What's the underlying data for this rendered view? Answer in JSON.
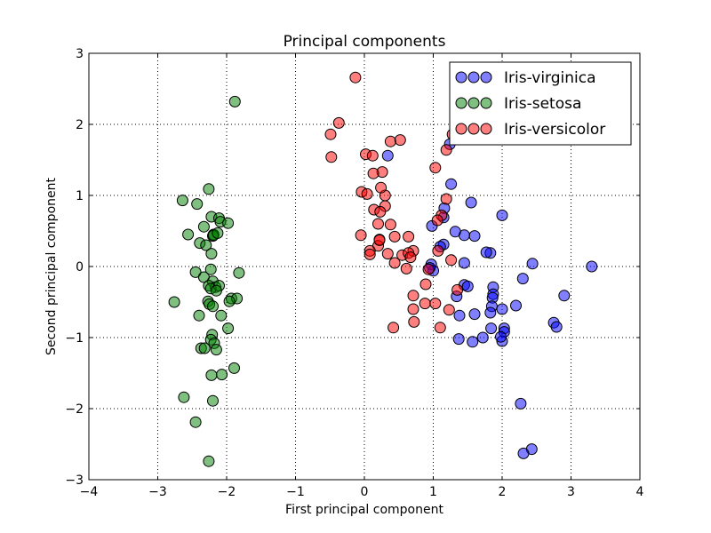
{
  "chart_data": {
    "type": "scatter",
    "title": "Principal components",
    "xlabel": "First principal component",
    "ylabel": "Second principal component",
    "xlim": [
      -4,
      4
    ],
    "ylim": [
      -3,
      3
    ],
    "x_ticks": [
      "−4",
      "−3",
      "−2",
      "−1",
      "0",
      "1",
      "2",
      "3",
      "4"
    ],
    "y_ticks": [
      "−3",
      "−2",
      "−1",
      "0",
      "1",
      "2",
      "3"
    ],
    "grid": true,
    "legend_position": "top-right",
    "series": [
      {
        "name": "Iris-virginica",
        "color": "#0000ff",
        "points": [
          [
            3.3,
            0.0
          ],
          [
            2.44,
            0.04
          ],
          [
            2.3,
            -0.17
          ],
          [
            2.9,
            -0.41
          ],
          [
            2.75,
            -0.79
          ],
          [
            2.79,
            -0.85
          ],
          [
            2.43,
            -2.57
          ],
          [
            2.31,
            -2.63
          ],
          [
            2.27,
            -1.93
          ],
          [
            2.2,
            -0.55
          ],
          [
            2.03,
            -0.87
          ],
          [
            2.03,
            -0.92
          ],
          [
            2.0,
            -1.05
          ],
          [
            1.98,
            -0.99
          ],
          [
            2.0,
            0.72
          ],
          [
            2.0,
            -0.6
          ],
          [
            1.87,
            -0.29
          ],
          [
            1.87,
            -0.39
          ],
          [
            1.86,
            -0.44
          ],
          [
            1.85,
            -0.56
          ],
          [
            1.83,
            -0.65
          ],
          [
            1.84,
            -0.87
          ],
          [
            1.83,
            0.19
          ],
          [
            1.77,
            0.2
          ],
          [
            1.72,
            -1.0
          ],
          [
            1.57,
            -1.06
          ],
          [
            1.6,
            -0.67
          ],
          [
            1.6,
            0.43
          ],
          [
            1.55,
            0.9
          ],
          [
            1.45,
            0.44
          ],
          [
            1.45,
            -0.26
          ],
          [
            1.5,
            -0.28
          ],
          [
            1.45,
            0.05
          ],
          [
            1.38,
            -0.69
          ],
          [
            1.37,
            -1.02
          ],
          [
            1.34,
            -0.42
          ],
          [
            1.32,
            0.49
          ],
          [
            1.26,
            1.16
          ],
          [
            1.24,
            1.72
          ],
          [
            1.16,
            0.82
          ],
          [
            1.15,
            0.69
          ],
          [
            1.15,
            0.31
          ],
          [
            1.1,
            0.28
          ],
          [
            0.98,
            0.57
          ],
          [
            0.97,
            0.03
          ],
          [
            1.0,
            -0.06
          ],
          [
            0.95,
            -0.02
          ],
          [
            0.34,
            1.56
          ]
        ]
      },
      {
        "name": "Iris-setosa",
        "color": "#008000",
        "points": [
          [
            -1.88,
            2.32
          ],
          [
            -2.26,
            1.09
          ],
          [
            -2.64,
            0.93
          ],
          [
            -2.43,
            0.88
          ],
          [
            -2.22,
            0.7
          ],
          [
            -2.11,
            0.68
          ],
          [
            -2.09,
            0.63
          ],
          [
            -1.98,
            0.61
          ],
          [
            -2.33,
            0.56
          ],
          [
            -2.19,
            0.45
          ],
          [
            -2.2,
            0.43
          ],
          [
            -2.56,
            0.45
          ],
          [
            -2.39,
            0.33
          ],
          [
            -2.3,
            0.3
          ],
          [
            -2.22,
            0.18
          ],
          [
            -2.23,
            -0.04
          ],
          [
            -2.45,
            -0.08
          ],
          [
            -1.82,
            -0.09
          ],
          [
            -2.33,
            -0.15
          ],
          [
            -2.2,
            -0.21
          ],
          [
            -2.26,
            -0.27
          ],
          [
            -2.16,
            -0.29
          ],
          [
            -2.23,
            -0.31
          ],
          [
            -2.11,
            -0.27
          ],
          [
            -2.15,
            -0.34
          ],
          [
            -1.93,
            -0.45
          ],
          [
            -1.85,
            -0.45
          ],
          [
            -2.76,
            -0.5
          ],
          [
            -2.27,
            -0.49
          ],
          [
            -2.25,
            -0.53
          ],
          [
            -2.2,
            -0.56
          ],
          [
            -1.96,
            -0.49
          ],
          [
            -2.4,
            -0.69
          ],
          [
            -2.08,
            -0.69
          ],
          [
            -1.98,
            -0.87
          ],
          [
            -2.21,
            -0.96
          ],
          [
            -2.23,
            -1.03
          ],
          [
            -2.18,
            -1.08
          ],
          [
            -2.37,
            -1.15
          ],
          [
            -2.32,
            -1.15
          ],
          [
            -2.15,
            -1.17
          ],
          [
            -2.07,
            -1.52
          ],
          [
            -2.22,
            -1.53
          ],
          [
            -1.89,
            -1.43
          ],
          [
            -2.62,
            -1.84
          ],
          [
            -2.2,
            -1.89
          ],
          [
            -2.45,
            -2.19
          ],
          [
            -2.26,
            -2.74
          ],
          [
            -2.19,
            0.44
          ],
          [
            -2.13,
            0.47
          ]
        ]
      },
      {
        "name": "Iris-versicolor",
        "color": "#ff0000",
        "points": [
          [
            -0.13,
            2.66
          ],
          [
            -0.37,
            2.02
          ],
          [
            -0.49,
            1.86
          ],
          [
            -0.48,
            1.54
          ],
          [
            0.38,
            1.76
          ],
          [
            0.52,
            1.78
          ],
          [
            0.02,
            1.58
          ],
          [
            0.12,
            1.56
          ],
          [
            0.26,
            1.33
          ],
          [
            0.13,
            1.31
          ],
          [
            0.3,
            1.0
          ],
          [
            0.24,
            1.11
          ],
          [
            1.03,
            1.39
          ],
          [
            1.19,
            1.64
          ],
          [
            1.19,
            0.95
          ],
          [
            1.28,
            1.86
          ],
          [
            -0.04,
            1.05
          ],
          [
            0.04,
            1.02
          ],
          [
            0.3,
            0.85
          ],
          [
            0.14,
            0.8
          ],
          [
            0.23,
            0.77
          ],
          [
            0.38,
            0.59
          ],
          [
            0.2,
            0.6
          ],
          [
            1.12,
            0.72
          ],
          [
            1.06,
            0.65
          ],
          [
            -0.05,
            0.44
          ],
          [
            0.22,
            0.38
          ],
          [
            0.44,
            0.42
          ],
          [
            0.64,
            0.42
          ],
          [
            0.2,
            0.29
          ],
          [
            0.22,
            0.37
          ],
          [
            0.71,
            0.22
          ],
          [
            0.08,
            0.22
          ],
          [
            0.08,
            0.17
          ],
          [
            0.34,
            0.18
          ],
          [
            0.55,
            0.16
          ],
          [
            0.64,
            0.19
          ],
          [
            0.67,
            0.13
          ],
          [
            0.44,
            0.05
          ],
          [
            0.61,
            -0.03
          ],
          [
            1.07,
            0.22
          ],
          [
            1.26,
            0.09
          ],
          [
            0.93,
            -0.04
          ],
          [
            0.89,
            -0.25
          ],
          [
            0.71,
            -0.41
          ],
          [
            0.88,
            -0.52
          ],
          [
            0.71,
            -0.6
          ],
          [
            1.03,
            -0.52
          ],
          [
            1.23,
            -0.61
          ],
          [
            1.35,
            -0.33
          ],
          [
            0.72,
            -0.78
          ],
          [
            0.42,
            -0.86
          ],
          [
            1.1,
            -0.86
          ]
        ]
      }
    ]
  }
}
